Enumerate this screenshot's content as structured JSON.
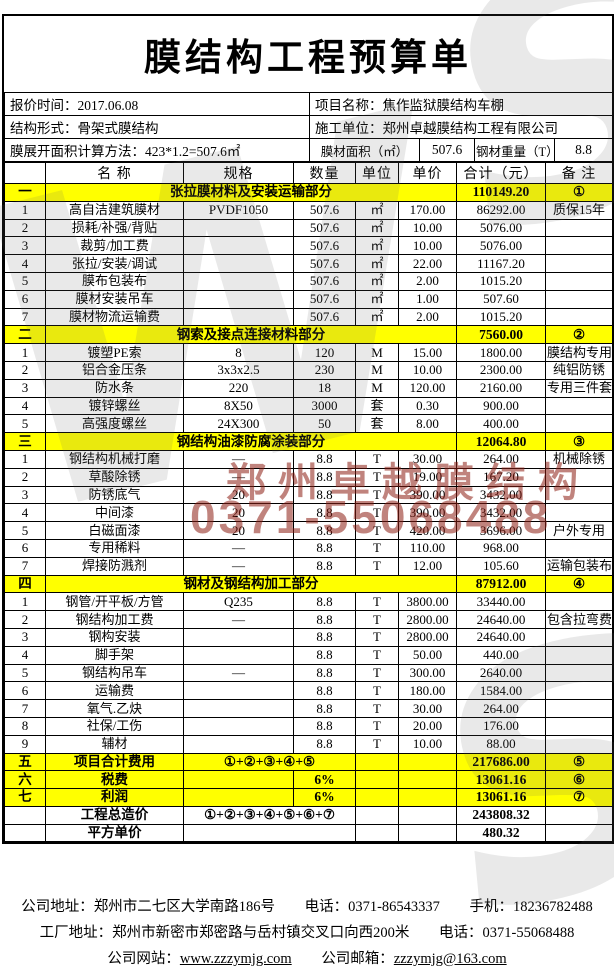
{
  "header": {
    "title": "膜结构工程预算单",
    "quote_time_label": "报价时间：",
    "quote_time": "2017.06.08",
    "project_label": "项目名称：",
    "project": "焦作监狱膜结构车棚",
    "structure_label": "结构形式：",
    "structure": "骨架式膜结构",
    "contractor_label": "施工单位：",
    "contractor": "郑州卓越膜结构工程有限公司",
    "area_method_label": "膜展开面积计算方法：",
    "area_method": "423*1.2=507.6㎡",
    "membrane_area_label": "膜材面积（㎡）",
    "membrane_area": "507.6",
    "steel_weight_label": "钢材重量（T）",
    "steel_weight": "8.8"
  },
  "table": {
    "columns": [
      "",
      "名  称",
      "规格",
      "数量",
      "单位",
      "单价",
      "合计（元）",
      "备  注"
    ],
    "rows": [
      {
        "cls": "sec",
        "cells": [
          {
            "v": "一"
          },
          {
            "v": "张拉膜材料及安装运输部分",
            "cs": 5
          },
          {
            "v": "110149.20"
          },
          {
            "v": "①"
          }
        ]
      },
      {
        "cls": "item",
        "cells": [
          {
            "v": "1"
          },
          {
            "v": "高自洁建筑膜材"
          },
          {
            "v": "PVDF1050"
          },
          {
            "v": "507.6"
          },
          {
            "v": "㎡"
          },
          {
            "v": "170.00"
          },
          {
            "v": "86292.00"
          },
          {
            "v": "质保15年"
          }
        ]
      },
      {
        "cls": "item",
        "cells": [
          {
            "v": "2"
          },
          {
            "v": "损耗/补强/背贴"
          },
          {
            "v": ""
          },
          {
            "v": "507.6"
          },
          {
            "v": "㎡"
          },
          {
            "v": "10.00"
          },
          {
            "v": "5076.00"
          },
          {
            "v": ""
          }
        ]
      },
      {
        "cls": "item",
        "cells": [
          {
            "v": "3"
          },
          {
            "v": "裁剪/加工费"
          },
          {
            "v": ""
          },
          {
            "v": "507.6"
          },
          {
            "v": "㎡"
          },
          {
            "v": "10.00"
          },
          {
            "v": "5076.00"
          },
          {
            "v": ""
          }
        ]
      },
      {
        "cls": "item",
        "cells": [
          {
            "v": "4"
          },
          {
            "v": "张拉/安装/调试"
          },
          {
            "v": ""
          },
          {
            "v": "507.6"
          },
          {
            "v": "㎡"
          },
          {
            "v": "22.00"
          },
          {
            "v": "11167.20"
          },
          {
            "v": ""
          }
        ]
      },
      {
        "cls": "item",
        "cells": [
          {
            "v": "5"
          },
          {
            "v": "膜布包装布"
          },
          {
            "v": ""
          },
          {
            "v": "507.6"
          },
          {
            "v": "㎡"
          },
          {
            "v": "2.00"
          },
          {
            "v": "1015.20"
          },
          {
            "v": ""
          }
        ]
      },
      {
        "cls": "item",
        "cells": [
          {
            "v": "6"
          },
          {
            "v": "膜材安装吊车"
          },
          {
            "v": ""
          },
          {
            "v": "507.6"
          },
          {
            "v": "㎡"
          },
          {
            "v": "1.00"
          },
          {
            "v": "507.60"
          },
          {
            "v": ""
          }
        ]
      },
      {
        "cls": "item",
        "cells": [
          {
            "v": "7"
          },
          {
            "v": "膜材物流运输费"
          },
          {
            "v": ""
          },
          {
            "v": "507.6"
          },
          {
            "v": "㎡"
          },
          {
            "v": "2.00"
          },
          {
            "v": "1015.20"
          },
          {
            "v": ""
          }
        ]
      },
      {
        "cls": "sec",
        "cells": [
          {
            "v": "二"
          },
          {
            "v": "钢索及接点连接材料部分",
            "cs": 5
          },
          {
            "v": "7560.00"
          },
          {
            "v": "②"
          }
        ]
      },
      {
        "cls": "item",
        "cells": [
          {
            "v": "1"
          },
          {
            "v": "镀塑PE索"
          },
          {
            "v": "8"
          },
          {
            "v": "120"
          },
          {
            "v": "M"
          },
          {
            "v": "15.00"
          },
          {
            "v": "1800.00"
          },
          {
            "v": "膜结构专用"
          }
        ]
      },
      {
        "cls": "item",
        "cells": [
          {
            "v": "2"
          },
          {
            "v": "铝合金压条"
          },
          {
            "v": "3x3x2.5"
          },
          {
            "v": "230"
          },
          {
            "v": "M"
          },
          {
            "v": "10.00"
          },
          {
            "v": "2300.00"
          },
          {
            "v": "纯铝防锈"
          }
        ]
      },
      {
        "cls": "item",
        "cells": [
          {
            "v": "3"
          },
          {
            "v": "防水条"
          },
          {
            "v": "220"
          },
          {
            "v": "18"
          },
          {
            "v": "M"
          },
          {
            "v": "120.00"
          },
          {
            "v": "2160.00"
          },
          {
            "v": "专用三件套"
          }
        ]
      },
      {
        "cls": "item",
        "cells": [
          {
            "v": "4"
          },
          {
            "v": "镀锌螺丝"
          },
          {
            "v": "8X50"
          },
          {
            "v": "3000"
          },
          {
            "v": "套"
          },
          {
            "v": "0.30"
          },
          {
            "v": "900.00"
          },
          {
            "v": ""
          }
        ]
      },
      {
        "cls": "item",
        "cells": [
          {
            "v": "5"
          },
          {
            "v": "高强度螺丝"
          },
          {
            "v": "24X300"
          },
          {
            "v": "50"
          },
          {
            "v": "套"
          },
          {
            "v": "8.00"
          },
          {
            "v": "400.00"
          },
          {
            "v": ""
          }
        ]
      },
      {
        "cls": "sec",
        "cells": [
          {
            "v": "三"
          },
          {
            "v": "钢结构油漆防腐涂装部分",
            "cs": 5
          },
          {
            "v": "12064.80"
          },
          {
            "v": "③"
          }
        ]
      },
      {
        "cls": "item",
        "cells": [
          {
            "v": "1"
          },
          {
            "v": "钢结构机械打磨"
          },
          {
            "v": "—"
          },
          {
            "v": "8.8"
          },
          {
            "v": "T"
          },
          {
            "v": "30.00"
          },
          {
            "v": "264.00"
          },
          {
            "v": "机械除锈"
          }
        ]
      },
      {
        "cls": "item",
        "cells": [
          {
            "v": "2"
          },
          {
            "v": "草酸除锈"
          },
          {
            "v": "—"
          },
          {
            "v": "8.8"
          },
          {
            "v": "T"
          },
          {
            "v": "19.00"
          },
          {
            "v": "167.20"
          },
          {
            "v": ""
          }
        ]
      },
      {
        "cls": "item",
        "cells": [
          {
            "v": "3"
          },
          {
            "v": "防锈底气"
          },
          {
            "v": "20"
          },
          {
            "v": "8.8"
          },
          {
            "v": "T"
          },
          {
            "v": "390.00"
          },
          {
            "v": "3432.00"
          },
          {
            "v": ""
          }
        ]
      },
      {
        "cls": "item",
        "cells": [
          {
            "v": "4"
          },
          {
            "v": "中间漆"
          },
          {
            "v": "20"
          },
          {
            "v": "8.8"
          },
          {
            "v": "T"
          },
          {
            "v": "390.00"
          },
          {
            "v": "3432.00"
          },
          {
            "v": ""
          }
        ]
      },
      {
        "cls": "item",
        "cells": [
          {
            "v": "5"
          },
          {
            "v": "白磁面漆"
          },
          {
            "v": "20"
          },
          {
            "v": "8.8"
          },
          {
            "v": "T"
          },
          {
            "v": "420.00"
          },
          {
            "v": "3696.00"
          },
          {
            "v": "户外专用"
          }
        ]
      },
      {
        "cls": "item",
        "cells": [
          {
            "v": "6"
          },
          {
            "v": "专用稀料"
          },
          {
            "v": "—"
          },
          {
            "v": "8.8"
          },
          {
            "v": "T"
          },
          {
            "v": "110.00"
          },
          {
            "v": "968.00"
          },
          {
            "v": ""
          }
        ]
      },
      {
        "cls": "item",
        "cells": [
          {
            "v": "7"
          },
          {
            "v": "焊接防溅剂"
          },
          {
            "v": "—"
          },
          {
            "v": "8.8"
          },
          {
            "v": "T"
          },
          {
            "v": "12.00"
          },
          {
            "v": "105.60"
          },
          {
            "v": "运输包装布"
          }
        ]
      },
      {
        "cls": "sec",
        "cells": [
          {
            "v": "四"
          },
          {
            "v": "钢材及钢结构加工部分",
            "cs": 5
          },
          {
            "v": "87912.00"
          },
          {
            "v": "④"
          }
        ]
      },
      {
        "cls": "item",
        "cells": [
          {
            "v": "1"
          },
          {
            "v": "钢管/开平板/方管"
          },
          {
            "v": "Q235"
          },
          {
            "v": "8.8"
          },
          {
            "v": "T"
          },
          {
            "v": "3800.00"
          },
          {
            "v": "33440.00"
          },
          {
            "v": ""
          }
        ]
      },
      {
        "cls": "item",
        "cells": [
          {
            "v": "2"
          },
          {
            "v": "钢结构加工费"
          },
          {
            "v": "—"
          },
          {
            "v": "8.8"
          },
          {
            "v": "T"
          },
          {
            "v": "2800.00"
          },
          {
            "v": "24640.00"
          },
          {
            "v": "包含拉弯费"
          }
        ]
      },
      {
        "cls": "item",
        "cells": [
          {
            "v": "3"
          },
          {
            "v": "钢构安装"
          },
          {
            "v": ""
          },
          {
            "v": "8.8"
          },
          {
            "v": "T"
          },
          {
            "v": "2800.00"
          },
          {
            "v": "24640.00"
          },
          {
            "v": ""
          }
        ]
      },
      {
        "cls": "item",
        "cells": [
          {
            "v": "4"
          },
          {
            "v": "脚手架"
          },
          {
            "v": ""
          },
          {
            "v": "8.8"
          },
          {
            "v": "T"
          },
          {
            "v": "50.00"
          },
          {
            "v": "440.00"
          },
          {
            "v": ""
          }
        ]
      },
      {
        "cls": "item",
        "cells": [
          {
            "v": "5"
          },
          {
            "v": "钢结构吊车"
          },
          {
            "v": "—"
          },
          {
            "v": "8.8"
          },
          {
            "v": "T"
          },
          {
            "v": "300.00"
          },
          {
            "v": "2640.00"
          },
          {
            "v": ""
          }
        ]
      },
      {
        "cls": "item",
        "cells": [
          {
            "v": "6"
          },
          {
            "v": "运输费"
          },
          {
            "v": ""
          },
          {
            "v": "8.8"
          },
          {
            "v": "T"
          },
          {
            "v": "180.00"
          },
          {
            "v": "1584.00"
          },
          {
            "v": ""
          }
        ]
      },
      {
        "cls": "item",
        "cells": [
          {
            "v": "7"
          },
          {
            "v": "氧气.乙炔"
          },
          {
            "v": ""
          },
          {
            "v": "8.8"
          },
          {
            "v": "T"
          },
          {
            "v": "30.00"
          },
          {
            "v": "264.00"
          },
          {
            "v": ""
          }
        ]
      },
      {
        "cls": "item",
        "cells": [
          {
            "v": "8"
          },
          {
            "v": "社保/工伤"
          },
          {
            "v": ""
          },
          {
            "v": "8.8"
          },
          {
            "v": "T"
          },
          {
            "v": "20.00"
          },
          {
            "v": "176.00"
          },
          {
            "v": ""
          }
        ]
      },
      {
        "cls": "item",
        "cells": [
          {
            "v": "9"
          },
          {
            "v": "辅材"
          },
          {
            "v": ""
          },
          {
            "v": "8.8"
          },
          {
            "v": "T"
          },
          {
            "v": "10.00"
          },
          {
            "v": "88.00"
          },
          {
            "v": ""
          }
        ]
      },
      {
        "cls": "sec",
        "cells": [
          {
            "v": "五"
          },
          {
            "v": "项目合计费用"
          },
          {
            "v": "①+②+③+④+⑤",
            "cs": 2
          },
          {
            "v": ""
          },
          {
            "v": ""
          },
          {
            "v": "217686.00"
          },
          {
            "v": "⑤"
          }
        ]
      },
      {
        "cls": "sec",
        "cells": [
          {
            "v": "六"
          },
          {
            "v": "税费"
          },
          {
            "v": ""
          },
          {
            "v": "6%"
          },
          {
            "v": ""
          },
          {
            "v": ""
          },
          {
            "v": "13061.16"
          },
          {
            "v": "⑥"
          }
        ]
      },
      {
        "cls": "sec",
        "cells": [
          {
            "v": "七"
          },
          {
            "v": "利润"
          },
          {
            "v": ""
          },
          {
            "v": "6%"
          },
          {
            "v": ""
          },
          {
            "v": ""
          },
          {
            "v": "13061.16"
          },
          {
            "v": "⑦"
          }
        ]
      },
      {
        "cls": "tot",
        "cells": [
          {
            "v": ""
          },
          {
            "v": "工程总造价"
          },
          {
            "v": "①+②+③+④+⑤+⑥+⑦",
            "cs": 2
          },
          {
            "v": ""
          },
          {
            "v": ""
          },
          {
            "v": "243808.32"
          },
          {
            "v": ""
          }
        ]
      },
      {
        "cls": "tot",
        "cells": [
          {
            "v": ""
          },
          {
            "v": "平方单价"
          },
          {
            "v": "",
            "cs": 2
          },
          {
            "v": ""
          },
          {
            "v": ""
          },
          {
            "v": "480.32"
          },
          {
            "v": ""
          }
        ]
      }
    ]
  },
  "watermark": {
    "company": "郑州卓越膜结构",
    "phone": "0371-55068488",
    "glyphs": [
      "W",
      "S",
      "S"
    ]
  },
  "footer": {
    "address_label": "公司地址：",
    "address": "郑州市二七区大学南路186号",
    "phone1_label": "电话：",
    "phone1": "0371-86543337",
    "mobile_label": "手机：",
    "mobile": "18236782488",
    "factory_label": "工厂地址：",
    "factory": "郑州市新密市郑密路与岳村镇交叉口向西200米",
    "phone2_label": "电话：",
    "phone2": "0371-55068488",
    "website_label": "公司网站：",
    "website": "www.zzzymjg.com",
    "email_label": "公司邮箱：",
    "email": "zzzymjg@163.com"
  }
}
